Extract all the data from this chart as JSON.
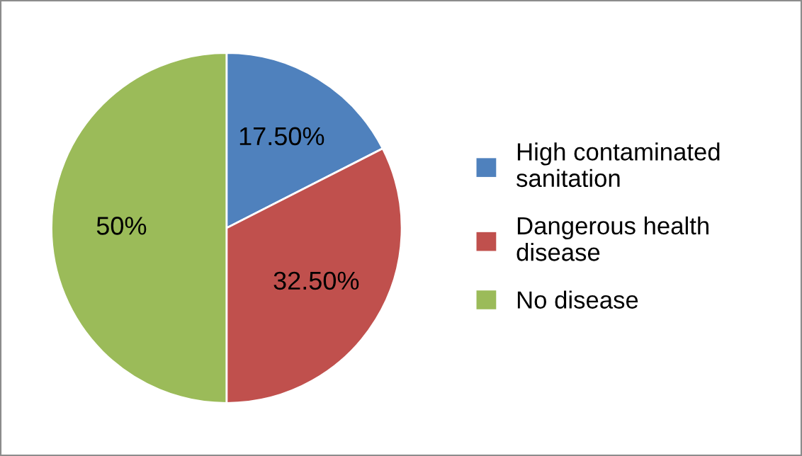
{
  "chart_data": {
    "type": "pie",
    "categories": [
      "High contaminated sanitation",
      "Dangerous health disease",
      "No disease"
    ],
    "values": [
      17.5,
      32.5,
      50
    ],
    "colors": [
      "#4f81bd",
      "#c0504d",
      "#9bbb59"
    ],
    "value_labels": [
      "17.50%",
      "32.50%",
      "50%"
    ],
    "legend": "right"
  }
}
